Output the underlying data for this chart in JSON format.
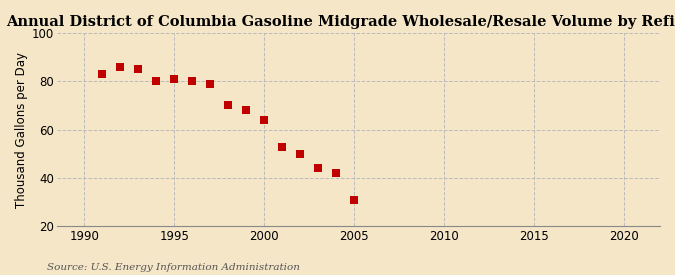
{
  "title": "Annual District of Columbia Gasoline Midgrade Wholesale/Resale Volume by Refiners",
  "ylabel": "Thousand Gallons per Day",
  "source": "Source: U.S. Energy Information Administration",
  "years": [
    1991,
    1992,
    1993,
    1994,
    1995,
    1996,
    1997,
    1998,
    1999,
    2000,
    2001,
    2002,
    2003,
    2004,
    2005
  ],
  "values": [
    83,
    86,
    85,
    80,
    81,
    80,
    79,
    70,
    68,
    64,
    53,
    50,
    44,
    42,
    31
  ],
  "xlim": [
    1988.5,
    2022
  ],
  "ylim": [
    20,
    100
  ],
  "yticks": [
    20,
    40,
    60,
    80,
    100
  ],
  "xticks": [
    1990,
    1995,
    2000,
    2005,
    2010,
    2015,
    2020
  ],
  "marker_color": "#c00000",
  "marker_size": 28,
  "background_color": "#f5e6c8",
  "grid_color": "#bbbbbb",
  "title_fontsize": 10.5,
  "label_fontsize": 8.5,
  "tick_fontsize": 8.5,
  "source_fontsize": 7.5
}
